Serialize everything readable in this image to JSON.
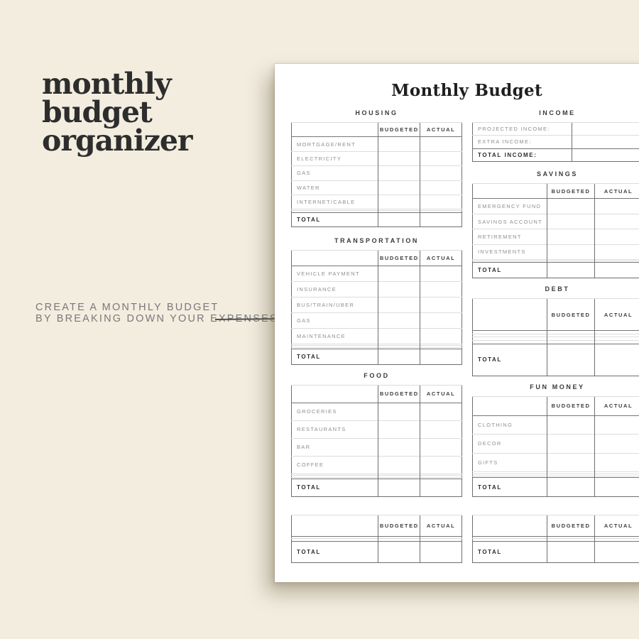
{
  "colors": {
    "background": "#f3ede0",
    "paper": "#ffffff",
    "ink": "#2d2d2d",
    "muted_text": "#8f8f8f",
    "line_dark": "#6e6e6e",
    "line_light": "#dcdcdc"
  },
  "left_panel": {
    "title_lines": [
      "monthly",
      "budget",
      "organizer"
    ],
    "tagline_lines": [
      "CREATE A MONTHLY BUDGET",
      "BY BREAKING DOWN YOUR EXPENSES"
    ]
  },
  "page": {
    "title": "Monthly Budget",
    "col_headers": {
      "budgeted": "BUDGETED",
      "actual": "ACTUAL"
    },
    "left_column": [
      {
        "title": "HOUSING",
        "cols": [
          51,
          24.5,
          24.5
        ],
        "rows": [
          "MORTGAGE/RENT",
          "ELECTRICITY",
          "GAS",
          "WATER",
          "INTERNET/CABLE",
          "",
          ""
        ],
        "total": "TOTAL"
      },
      {
        "title": "TRANSPORTATION",
        "cols": [
          51,
          24.5,
          24.5
        ],
        "rows": [
          "VEHICLE PAYMENT",
          "INSURANCE",
          "BUS/TRAIN/UBER",
          "GAS",
          "MAINTENANCE",
          "",
          "",
          ""
        ],
        "total": "TOTAL"
      },
      {
        "title": "FOOD",
        "cols": [
          51,
          24.5,
          24.5
        ],
        "rows": [
          "GROCERIES",
          "RESTAURANTS",
          "BAR",
          "COFFEE",
          "",
          "",
          ""
        ],
        "total": "TOTAL"
      },
      {
        "title": "",
        "cols": [
          51,
          24.5,
          24.5
        ],
        "rows": [
          "",
          ""
        ],
        "total": "TOTAL"
      }
    ],
    "right_column": [
      {
        "title": "INCOME",
        "no_header": true,
        "cols": [
          58.5,
          41.5
        ],
        "rows": [
          "PROJECTED INCOME:",
          "EXTRA INCOME:"
        ],
        "total": "TOTAL INCOME:"
      },
      {
        "title": "SAVINGS",
        "cols": [
          44,
          28,
          28
        ],
        "rows": [
          "EMERGENCY FUND",
          "SAVINGS ACCOUNT",
          "RETIREMENT",
          "INVESTMENTS",
          "",
          ""
        ],
        "total": "TOTAL"
      },
      {
        "title": "DEBT",
        "cols": [
          44,
          28,
          28
        ],
        "rows": [
          "",
          "",
          "",
          ""
        ],
        "total": "TOTAL"
      },
      {
        "title": "FUN MONEY",
        "cols": [
          44,
          28,
          28
        ],
        "rows": [
          "CLOTHING",
          "DECOR",
          "GIFTS",
          "",
          "",
          ""
        ],
        "total": "TOTAL"
      },
      {
        "title": "",
        "cols": [
          44,
          28,
          28
        ],
        "rows": [
          "",
          ""
        ],
        "total": "TOTAL"
      }
    ]
  }
}
